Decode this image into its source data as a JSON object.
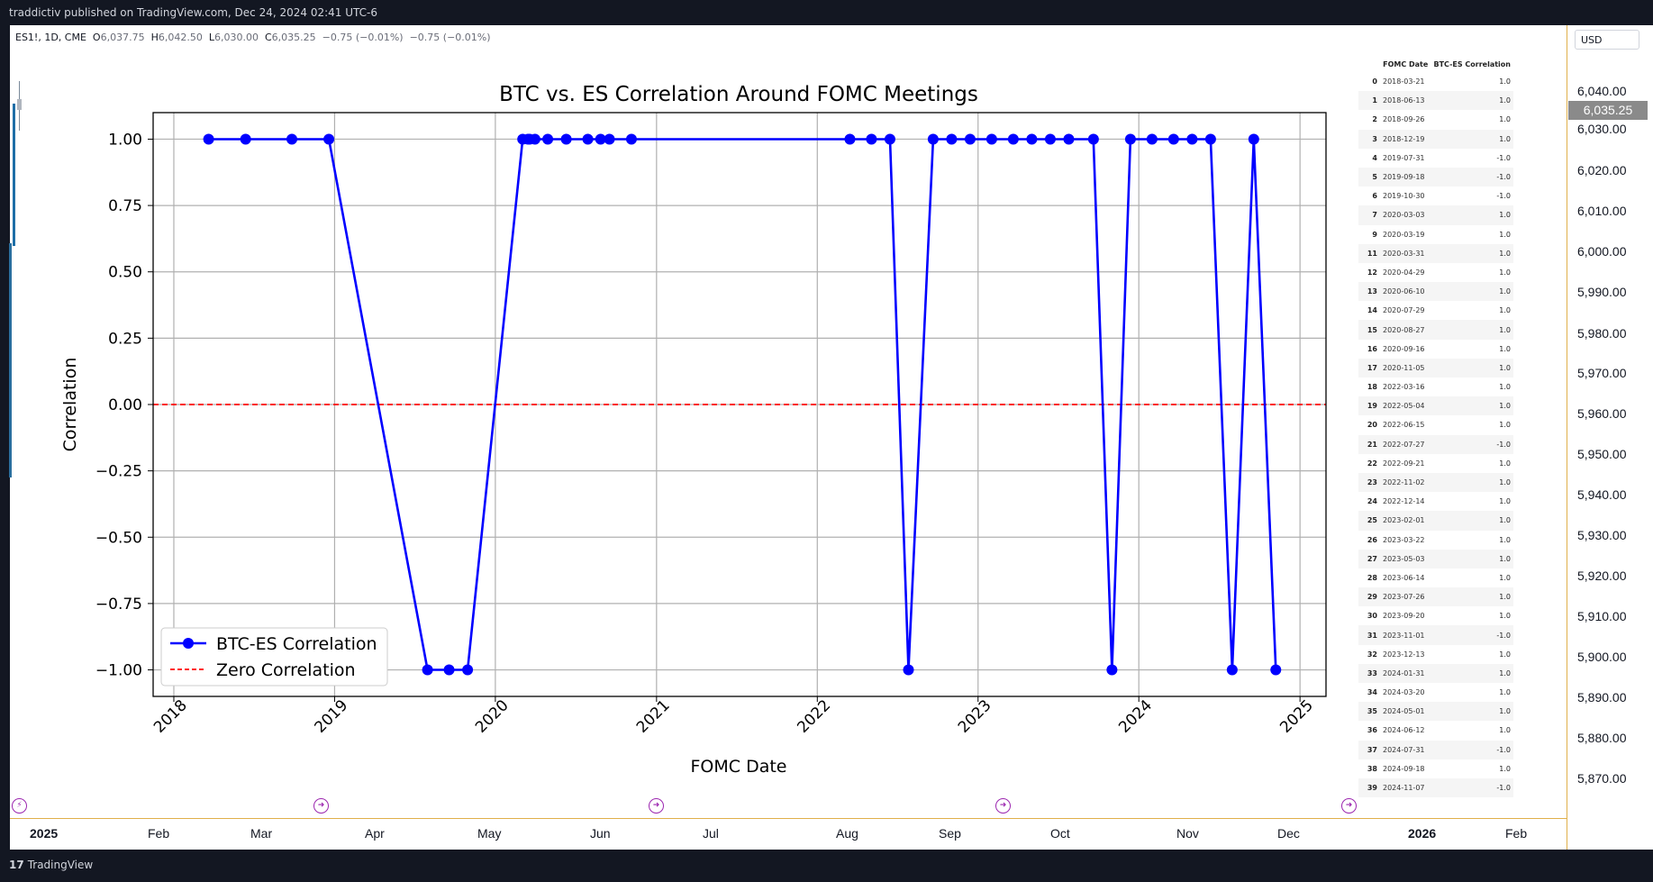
{
  "header": {
    "published_text": "traddictiv published on TradingView.com, Dec 24, 2024 02:41 UTC-6"
  },
  "symbol_info": {
    "symbol": "ES1!, 1D, CME",
    "open_label": "O",
    "open": "6,037.75",
    "high_label": "H",
    "high": "6,042.50",
    "low_label": "L",
    "low": "6,030.00",
    "close_label": "C",
    "close": "6,035.25",
    "change": "−0.75 (−0.01%)",
    "change2": "−0.75 (−0.01%)"
  },
  "price_axis": {
    "currency": "USD",
    "current_price": "6,035.25",
    "labels": [
      "6,040.00",
      "6,030.00",
      "6,020.00",
      "6,010.00",
      "6,000.00",
      "5,990.00",
      "5,980.00",
      "5,970.00",
      "5,960.00",
      "5,950.00",
      "5,940.00",
      "5,930.00",
      "5,920.00",
      "5,910.00",
      "5,900.00",
      "5,890.00",
      "5,880.00",
      "5,870.00"
    ]
  },
  "time_axis": {
    "labels": [
      "2025",
      "Feb",
      "Mar",
      "Apr",
      "May",
      "Jun",
      "Jul",
      "Aug",
      "Sep",
      "Oct",
      "Nov",
      "Dec",
      "2026",
      "Feb"
    ]
  },
  "footer": {
    "brand": "TradingView",
    "brand_mark": "17"
  },
  "chart_data": {
    "type": "line",
    "title": "BTC vs. ES Correlation Around FOMC Meetings",
    "xlabel": "FOMC Date",
    "ylabel": "Correlation",
    "x_tick_labels": [
      "2018",
      "2019",
      "2020",
      "2021",
      "2022",
      "2023",
      "2024",
      "2025"
    ],
    "y_tick_labels": [
      "1.00",
      "0.75",
      "0.50",
      "0.25",
      "0.00",
      "−0.25",
      "−0.50",
      "−0.75",
      "−1.00"
    ],
    "ylim": [
      -1.1,
      1.1
    ],
    "xlim": [
      "2017-11-15",
      "2025-03-01"
    ],
    "grid": true,
    "legend_position": "lower-left",
    "series": [
      {
        "name": "BTC-ES Correlation",
        "color": "#0000ff",
        "marker": "circle",
        "x": [
          "2018-03-21",
          "2018-06-13",
          "2018-09-26",
          "2018-12-19",
          "2019-07-31",
          "2019-09-18",
          "2019-10-30",
          "2020-03-03",
          "2020-03-15",
          "2020-03-19",
          "2020-03-31",
          "2020-04-29",
          "2020-06-10",
          "2020-07-29",
          "2020-08-27",
          "2020-09-16",
          "2020-11-05",
          "2022-03-16",
          "2022-05-04",
          "2022-06-15",
          "2022-07-27",
          "2022-09-21",
          "2022-11-02",
          "2022-12-14",
          "2023-02-01",
          "2023-03-22",
          "2023-05-03",
          "2023-06-14",
          "2023-07-26",
          "2023-09-20",
          "2023-11-01",
          "2023-12-13",
          "2024-01-31",
          "2024-03-20",
          "2024-05-01",
          "2024-06-12",
          "2024-07-31",
          "2024-09-18",
          "2024-11-07"
        ],
        "values": [
          1,
          1,
          1,
          1,
          -1,
          -1,
          -1,
          1,
          1,
          1,
          1,
          1,
          1,
          1,
          1,
          1,
          1,
          1,
          1,
          1,
          -1,
          1,
          1,
          1,
          1,
          1,
          1,
          1,
          1,
          1,
          -1,
          1,
          1,
          1,
          1,
          1,
          -1,
          1,
          -1
        ]
      },
      {
        "name": "Zero Correlation",
        "color": "#ff0000",
        "style": "dashed",
        "constant": 0
      }
    ]
  },
  "table": {
    "columns": [
      "FOMC Date",
      "BTC-ES Correlation"
    ],
    "rows": [
      {
        "idx": "0",
        "date": "2018-03-21",
        "corr": "1.0"
      },
      {
        "idx": "1",
        "date": "2018-06-13",
        "corr": "1.0"
      },
      {
        "idx": "2",
        "date": "2018-09-26",
        "corr": "1.0"
      },
      {
        "idx": "3",
        "date": "2018-12-19",
        "corr": "1.0"
      },
      {
        "idx": "4",
        "date": "2019-07-31",
        "corr": "-1.0"
      },
      {
        "idx": "5",
        "date": "2019-09-18",
        "corr": "-1.0"
      },
      {
        "idx": "6",
        "date": "2019-10-30",
        "corr": "-1.0"
      },
      {
        "idx": "7",
        "date": "2020-03-03",
        "corr": "1.0"
      },
      {
        "idx": "9",
        "date": "2020-03-19",
        "corr": "1.0"
      },
      {
        "idx": "11",
        "date": "2020-03-31",
        "corr": "1.0"
      },
      {
        "idx": "12",
        "date": "2020-04-29",
        "corr": "1.0"
      },
      {
        "idx": "13",
        "date": "2020-06-10",
        "corr": "1.0"
      },
      {
        "idx": "14",
        "date": "2020-07-29",
        "corr": "1.0"
      },
      {
        "idx": "15",
        "date": "2020-08-27",
        "corr": "1.0"
      },
      {
        "idx": "16",
        "date": "2020-09-16",
        "corr": "1.0"
      },
      {
        "idx": "17",
        "date": "2020-11-05",
        "corr": "1.0"
      },
      {
        "idx": "18",
        "date": "2022-03-16",
        "corr": "1.0"
      },
      {
        "idx": "19",
        "date": "2022-05-04",
        "corr": "1.0"
      },
      {
        "idx": "20",
        "date": "2022-06-15",
        "corr": "1.0"
      },
      {
        "idx": "21",
        "date": "2022-07-27",
        "corr": "-1.0"
      },
      {
        "idx": "22",
        "date": "2022-09-21",
        "corr": "1.0"
      },
      {
        "idx": "23",
        "date": "2022-11-02",
        "corr": "1.0"
      },
      {
        "idx": "24",
        "date": "2022-12-14",
        "corr": "1.0"
      },
      {
        "idx": "25",
        "date": "2023-02-01",
        "corr": "1.0"
      },
      {
        "idx": "26",
        "date": "2023-03-22",
        "corr": "1.0"
      },
      {
        "idx": "27",
        "date": "2023-05-03",
        "corr": "1.0"
      },
      {
        "idx": "28",
        "date": "2023-06-14",
        "corr": "1.0"
      },
      {
        "idx": "29",
        "date": "2023-07-26",
        "corr": "1.0"
      },
      {
        "idx": "30",
        "date": "2023-09-20",
        "corr": "1.0"
      },
      {
        "idx": "31",
        "date": "2023-11-01",
        "corr": "-1.0"
      },
      {
        "idx": "32",
        "date": "2023-12-13",
        "corr": "1.0"
      },
      {
        "idx": "33",
        "date": "2024-01-31",
        "corr": "1.0"
      },
      {
        "idx": "34",
        "date": "2024-03-20",
        "corr": "1.0"
      },
      {
        "idx": "35",
        "date": "2024-05-01",
        "corr": "1.0"
      },
      {
        "idx": "36",
        "date": "2024-06-12",
        "corr": "1.0"
      },
      {
        "idx": "37",
        "date": "2024-07-31",
        "corr": "-1.0"
      },
      {
        "idx": "38",
        "date": "2024-09-18",
        "corr": "1.0"
      },
      {
        "idx": "39",
        "date": "2024-11-07",
        "corr": "-1.0"
      }
    ]
  },
  "colors": {
    "accent": "#e0b04a",
    "event_marker": "#9c27b0",
    "dark_bg": "#131722"
  },
  "icons": [
    "lightning-icon",
    "arrow-circle-icon"
  ]
}
